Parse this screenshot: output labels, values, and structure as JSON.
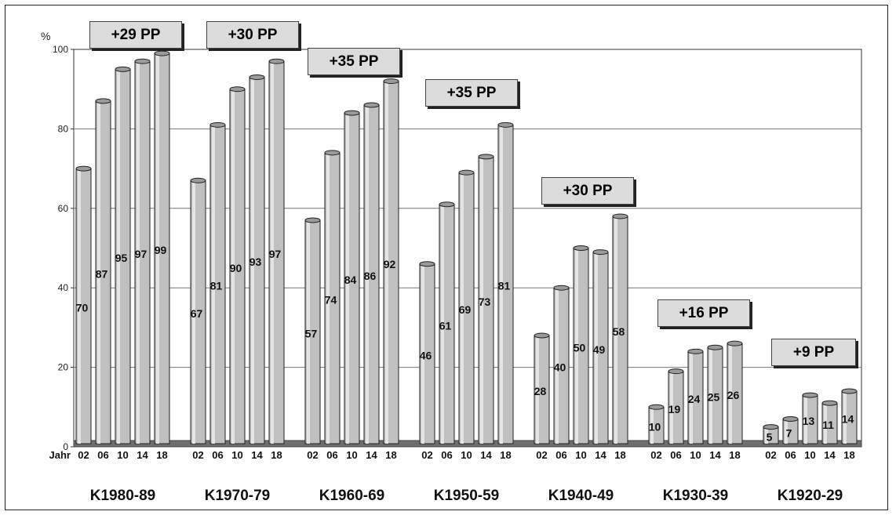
{
  "chart_data": {
    "type": "bar",
    "ylabel": "%",
    "xlabel": "Jahr",
    "ylim": [
      0,
      100
    ],
    "yticks": [
      0,
      20,
      40,
      60,
      80,
      100
    ],
    "grid": true,
    "bar_color": "#c0c0c0",
    "groups": [
      {
        "name": "K1980-89",
        "years": [
          "02",
          "06",
          "10",
          "14",
          "18"
        ],
        "values": [
          70,
          87,
          95,
          97,
          99
        ],
        "change": "+29 PP"
      },
      {
        "name": "K1970-79",
        "years": [
          "02",
          "06",
          "10",
          "14",
          "18"
        ],
        "values": [
          67,
          81,
          90,
          93,
          97
        ],
        "change": "+30 PP"
      },
      {
        "name": "K1960-69",
        "years": [
          "02",
          "06",
          "10",
          "14",
          "18"
        ],
        "values": [
          57,
          74,
          84,
          86,
          92
        ],
        "change": "+35 PP"
      },
      {
        "name": "K1950-59",
        "years": [
          "02",
          "06",
          "10",
          "14",
          "18"
        ],
        "values": [
          46,
          61,
          69,
          73,
          81
        ],
        "change": "+35 PP"
      },
      {
        "name": "K1940-49",
        "years": [
          "02",
          "06",
          "10",
          "14",
          "18"
        ],
        "values": [
          28,
          40,
          50,
          49,
          58
        ],
        "change": "+30 PP"
      },
      {
        "name": "K1930-39",
        "years": [
          "02",
          "06",
          "10",
          "14",
          "18"
        ],
        "values": [
          10,
          19,
          24,
          25,
          26
        ],
        "change": "+16 PP"
      },
      {
        "name": "K1920-29",
        "years": [
          "02",
          "06",
          "10",
          "14",
          "18"
        ],
        "values": [
          5,
          7,
          13,
          11,
          14
        ],
        "change": "+9 PP"
      }
    ]
  }
}
